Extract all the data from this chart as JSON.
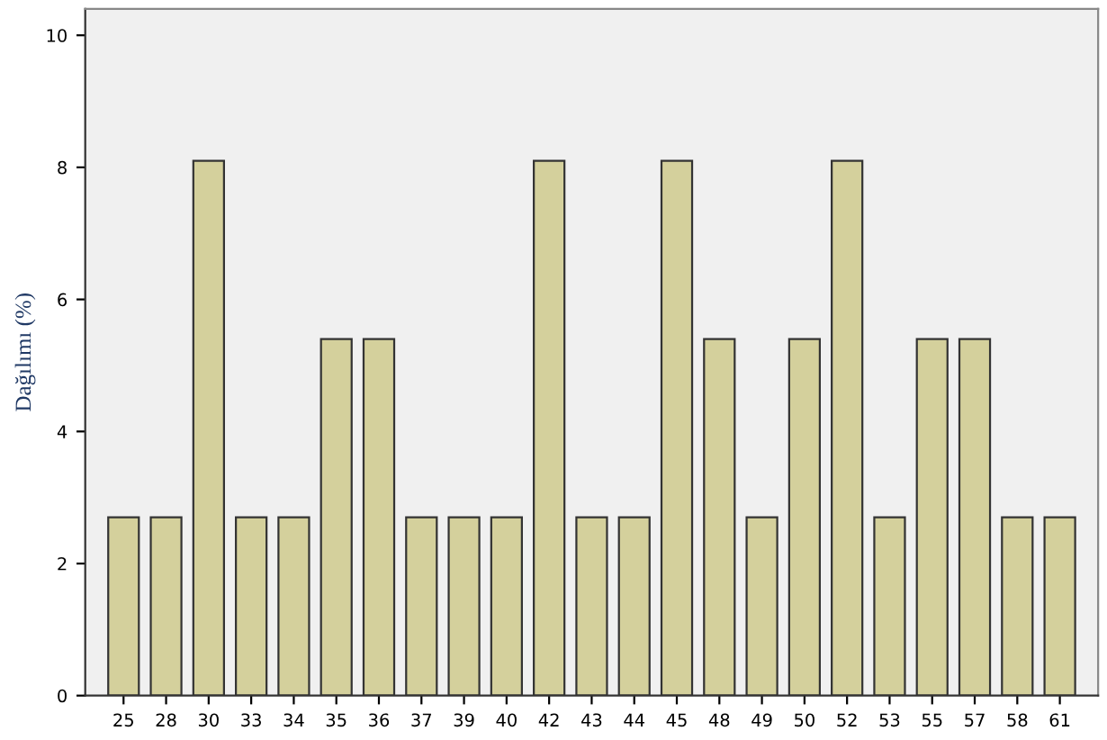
{
  "chart_data": {
    "type": "bar",
    "ylabel": "Dağılımı (%)",
    "categories": [
      "25",
      "28",
      "30",
      "33",
      "34",
      "35",
      "36",
      "37",
      "39",
      "40",
      "42",
      "43",
      "44",
      "45",
      "48",
      "49",
      "50",
      "52",
      "53",
      "55",
      "57",
      "58",
      "61"
    ],
    "values": [
      2.7,
      2.7,
      8.1,
      2.7,
      2.7,
      5.4,
      5.4,
      2.7,
      2.7,
      2.7,
      8.1,
      2.7,
      2.7,
      8.1,
      5.4,
      2.7,
      5.4,
      8.1,
      2.7,
      5.4,
      5.4,
      2.7,
      2.7
    ],
    "color": "#d4d09c",
    "ylim": [
      0,
      10.4
    ],
    "yticks": [
      0,
      2,
      4,
      6,
      8,
      10
    ],
    "grid": false
  }
}
